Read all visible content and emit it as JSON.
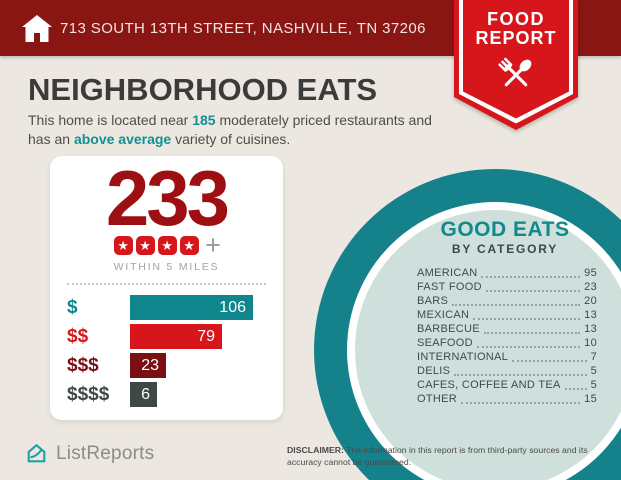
{
  "colors": {
    "banner_dark_red": "#8a1613",
    "badge_red": "#d7161c",
    "deep_red": "#9d0f13",
    "maroon": "#7a1013",
    "charcoal": "#3d4847",
    "teal": "#0f868b",
    "ring_teal": "#15818a",
    "circle_fill": "#cfe0dc",
    "background": "#ece8e1"
  },
  "header": {
    "address": "713 SOUTH 13TH STREET, NASHVILLE, TN 37206",
    "badge": {
      "line1": "FOOD",
      "line2": "REPORT"
    }
  },
  "intro": {
    "title": "NEIGHBORHOOD EATS",
    "line1_pre": "This home is located near ",
    "line1_stat": "185",
    "line1_post": " moderately priced restaurants and",
    "line2_pre": "has an ",
    "line2_stat": "above average",
    "line2_post": " variety of cuisines."
  },
  "stats_card": {
    "count": "233",
    "stars_filled": 4,
    "star_char": "★",
    "plus": "+",
    "caption": "WITHIN 5 MILES"
  },
  "chart_data": [
    {
      "type": "bar",
      "orientation": "horizontal",
      "categories": [
        "$",
        "$$",
        "$$$",
        "$$$$"
      ],
      "values": [
        106,
        79,
        23,
        6
      ],
      "bar_colors": [
        "#0f868b",
        "#d7161c",
        "#7a1013",
        "#3d4847"
      ],
      "xlim": [
        0,
        106
      ],
      "value_labels": "inside-right",
      "grid": false,
      "legend": false
    },
    {
      "type": "table",
      "title": "GOOD EATS",
      "subtitle": "BY CATEGORY",
      "categories": [
        "AMERICAN",
        "FAST FOOD",
        "BARS",
        "MEXICAN",
        "BARBECUE",
        "SEAFOOD",
        "INTERNATIONAL",
        "DELIS",
        "CAFES, COFFEE AND TEA",
        "OTHER"
      ],
      "values": [
        95,
        23,
        20,
        13,
        13,
        10,
        7,
        5,
        5,
        15
      ]
    }
  ],
  "footer": {
    "brand": "ListReports",
    "disclaimer_label": "DISCLAIMER:",
    "disclaimer_text": " The information in this report is from third-party sources and its accuracy cannot be guaranteed."
  }
}
